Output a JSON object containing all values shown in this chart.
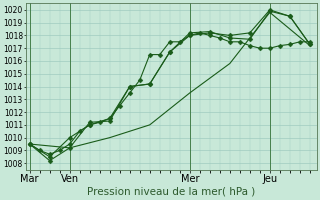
{
  "xlabel": "Pression niveau de la mer( hPa )",
  "ylim": [
    1007.5,
    1020.5
  ],
  "yticks": [
    1008,
    1009,
    1010,
    1011,
    1012,
    1013,
    1014,
    1015,
    1016,
    1017,
    1018,
    1019,
    1020
  ],
  "bg_color": "#c8e8d8",
  "grid_color": "#a0ccc0",
  "line_color": "#1a5c1a",
  "vline_color": "#2d6b2d",
  "xtick_labels": [
    "Mar",
    "Ven",
    "Mer",
    "Jeu"
  ],
  "xtick_positions": [
    0,
    24,
    96,
    144
  ],
  "xlim": [
    -2,
    172
  ],
  "series": [
    {
      "x": [
        0,
        6,
        12,
        18,
        24,
        30,
        36,
        42,
        48,
        54,
        60,
        66,
        72,
        78,
        84,
        90,
        96,
        102,
        108,
        114,
        120,
        126,
        132,
        138,
        144,
        150,
        156,
        162,
        168
      ],
      "y": [
        1009.5,
        1009.0,
        1008.7,
        1009.0,
        1009.5,
        1010.5,
        1011.0,
        1011.2,
        1011.5,
        1012.5,
        1013.5,
        1014.5,
        1016.5,
        1016.5,
        1017.5,
        1017.5,
        1018.0,
        1018.2,
        1018.0,
        1017.8,
        1017.5,
        1017.5,
        1017.2,
        1017.0,
        1017.0,
        1017.2,
        1017.3,
        1017.5,
        1017.5
      ],
      "marker": "D",
      "markersize": 2.5,
      "lw": 0.8
    },
    {
      "x": [
        0,
        12,
        24,
        36,
        48,
        60,
        72,
        84,
        96,
        108,
        120,
        132,
        144,
        156,
        168
      ],
      "y": [
        1009.5,
        1008.2,
        1009.2,
        1011.2,
        1011.3,
        1014.0,
        1014.2,
        1016.7,
        1018.2,
        1018.3,
        1017.8,
        1017.7,
        1019.9,
        1019.5,
        1017.3
      ],
      "marker": "D",
      "markersize": 2.5,
      "lw": 0.8
    },
    {
      "x": [
        0,
        24,
        48,
        72,
        96,
        120,
        144,
        168
      ],
      "y": [
        1009.5,
        1009.2,
        1010.0,
        1011.0,
        1013.5,
        1015.8,
        1019.8,
        1017.2
      ],
      "marker": null,
      "markersize": 0,
      "lw": 0.8
    },
    {
      "x": [
        0,
        12,
        24,
        36,
        48,
        60,
        72,
        84,
        96,
        108,
        120,
        132,
        144,
        156,
        168
      ],
      "y": [
        1009.5,
        1008.5,
        1010.0,
        1011.0,
        1011.5,
        1014.0,
        1014.2,
        1016.7,
        1018.0,
        1018.2,
        1018.0,
        1018.2,
        1020.0,
        1019.5,
        1017.3
      ],
      "marker": "D",
      "markersize": 2.5,
      "lw": 0.8
    }
  ],
  "vlines": [
    0,
    24,
    96,
    144
  ],
  "ylabel_fontsize": 5.5,
  "xlabel_fontsize": 7.5,
  "ytick_fontsize": 5.5,
  "xtick_fontsize": 7
}
